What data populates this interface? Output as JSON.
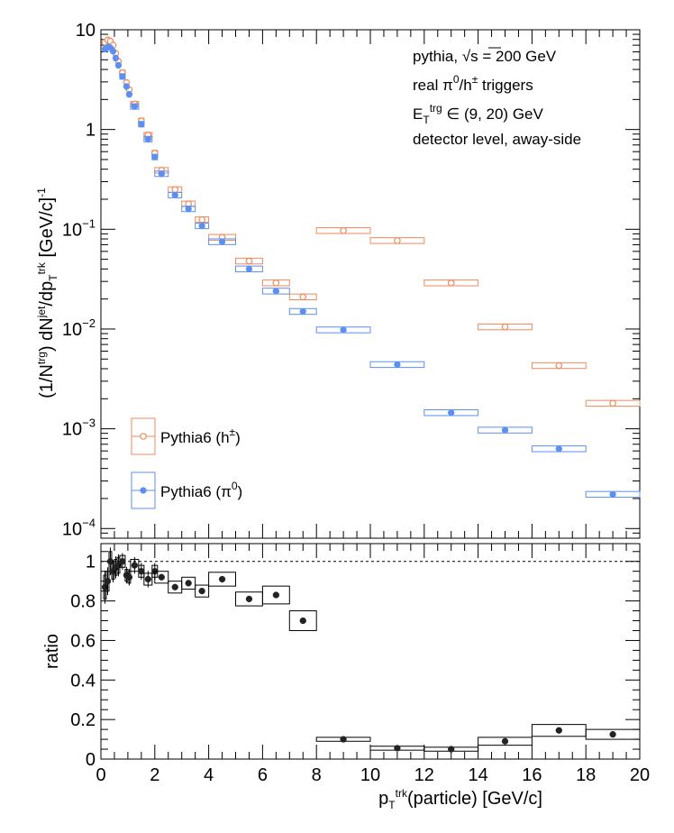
{
  "chart_data": [
    {
      "type": "scatter",
      "panel": "top",
      "x_range": [
        0,
        20
      ],
      "ylim": [
        8e-05,
        10
      ],
      "log_y": true,
      "grid": false,
      "y_ticks": [
        {
          "v": 10,
          "label": "10",
          "exp": ""
        },
        {
          "v": 1,
          "label": "1",
          "exp": ""
        },
        {
          "v": 0.1,
          "label": "10",
          "exp": "−1"
        },
        {
          "v": 0.01,
          "label": "10",
          "exp": "−2"
        },
        {
          "v": 0.001,
          "label": "10",
          "exp": "−3"
        },
        {
          "v": 0.0001,
          "label": "10",
          "exp": "−4"
        }
      ],
      "ylabel_parts": [
        {
          "t": "(1/N",
          "s": ""
        },
        {
          "t": "trg",
          "s": "sup"
        },
        {
          "t": ") dN",
          "s": ""
        },
        {
          "t": "jet",
          "s": "sup"
        },
        {
          "t": "/dp",
          "s": ""
        },
        {
          "t": "T",
          "s": "sub"
        },
        {
          "t": "trk",
          "s": "sup"
        },
        {
          "t": " [GeV/c]",
          "s": ""
        },
        {
          "t": "-1",
          "s": "sup"
        }
      ],
      "annotations": [
        {
          "text": "pythia, √s = 200 GeV"
        },
        {
          "text": "real π⁰/h± triggers"
        },
        {
          "text": "E_T^trg ∈ (9, 20) GeV"
        },
        {
          "text": "detector level, away-side"
        }
      ],
      "annotation_parts": [
        [
          {
            "t": "pythia, ",
            "s": ""
          },
          {
            "t": "√s",
            "s": ""
          },
          {
            "t": " = 200 GeV",
            "s": ""
          }
        ],
        [
          {
            "t": "real π",
            "s": ""
          },
          {
            "t": "0",
            "s": "sup"
          },
          {
            "t": "/h",
            "s": ""
          },
          {
            "t": "±",
            "s": "sup"
          },
          {
            "t": " triggers",
            "s": ""
          }
        ],
        [
          {
            "t": "E",
            "s": ""
          },
          {
            "t": "T",
            "s": "sub"
          },
          {
            "t": "trg",
            "s": "sup"
          },
          {
            "t": " ∈ (9, 20) GeV",
            "s": ""
          }
        ],
        [
          {
            "t": "detector level, away-side",
            "s": ""
          }
        ]
      ],
      "legend_placement": "bottom-left",
      "series": [
        {
          "name": "Pythia6 (h±)",
          "legend_parts": [
            {
              "t": "Pythia6 (h",
              "s": ""
            },
            {
              "t": "±",
              "s": "sup"
            },
            {
              "t": ")",
              "s": ""
            }
          ],
          "color": "#f0895a",
          "marker": "open-circle",
          "points": [
            {
              "x": 0.15,
              "y": 7.5,
              "lo": 0.1,
              "hi": 0.2
            },
            {
              "x": 0.25,
              "y": 7.9,
              "lo": 0.2,
              "hi": 0.3
            },
            {
              "x": 0.35,
              "y": 7.7,
              "lo": 0.3,
              "hi": 0.4
            },
            {
              "x": 0.45,
              "y": 7.0,
              "lo": 0.4,
              "hi": 0.5
            },
            {
              "x": 0.55,
              "y": 5.8,
              "lo": 0.5,
              "hi": 0.6
            },
            {
              "x": 0.65,
              "y": 4.8,
              "lo": 0.6,
              "hi": 0.7
            },
            {
              "x": 0.8,
              "y": 3.7,
              "lo": 0.7,
              "hi": 0.9
            },
            {
              "x": 0.95,
              "y": 2.95,
              "lo": 0.9,
              "hi": 1.0
            },
            {
              "x": 1.05,
              "y": 2.5,
              "lo": 1.0,
              "hi": 1.1
            },
            {
              "x": 1.25,
              "y": 1.8,
              "lo": 1.1,
              "hi": 1.4
            },
            {
              "x": 1.5,
              "y": 1.22,
              "lo": 1.4,
              "hi": 1.6
            },
            {
              "x": 1.75,
              "y": 0.88,
              "lo": 1.6,
              "hi": 1.9
            },
            {
              "x": 2.0,
              "y": 0.58,
              "lo": 1.9,
              "hi": 2.1
            },
            {
              "x": 2.25,
              "y": 0.39,
              "lo": 2.0,
              "hi": 2.5
            },
            {
              "x": 2.75,
              "y": 0.25,
              "lo": 2.5,
              "hi": 3.0
            },
            {
              "x": 3.25,
              "y": 0.18,
              "lo": 3.0,
              "hi": 3.5
            },
            {
              "x": 3.75,
              "y": 0.125,
              "lo": 3.5,
              "hi": 4.0
            },
            {
              "x": 4.5,
              "y": 0.083,
              "lo": 4.0,
              "hi": 5.0
            },
            {
              "x": 5.5,
              "y": 0.048,
              "lo": 5.0,
              "hi": 6.0
            },
            {
              "x": 6.5,
              "y": 0.029,
              "lo": 6.0,
              "hi": 7.0
            },
            {
              "x": 7.5,
              "y": 0.021,
              "lo": 7.0,
              "hi": 8.0
            },
            {
              "x": 9.0,
              "y": 0.097,
              "lo": 8.0,
              "hi": 10.0
            },
            {
              "x": 11.0,
              "y": 0.077,
              "lo": 10.0,
              "hi": 12.0
            },
            {
              "x": 13.0,
              "y": 0.029,
              "lo": 12.0,
              "hi": 14.0
            },
            {
              "x": 15.0,
              "y": 0.0105,
              "lo": 14.0,
              "hi": 16.0
            },
            {
              "x": 17.0,
              "y": 0.0043,
              "lo": 16.0,
              "hi": 18.0
            },
            {
              "x": 19.0,
              "y": 0.0018,
              "lo": 18.0,
              "hi": 20.0
            }
          ]
        },
        {
          "name": "Pythia6 (π0)",
          "legend_parts": [
            {
              "t": "Pythia6 (π",
              "s": ""
            },
            {
              "t": "0",
              "s": "sup"
            },
            {
              "t": ")",
              "s": ""
            }
          ],
          "color": "#5b8ff0",
          "marker": "filled-circle",
          "points": [
            {
              "x": 0.15,
              "y": 6.4,
              "lo": 0.1,
              "hi": 0.2
            },
            {
              "x": 0.25,
              "y": 6.7,
              "lo": 0.2,
              "hi": 0.3
            },
            {
              "x": 0.35,
              "y": 6.6,
              "lo": 0.3,
              "hi": 0.4
            },
            {
              "x": 0.45,
              "y": 6.1,
              "lo": 0.4,
              "hi": 0.5
            },
            {
              "x": 0.55,
              "y": 5.2,
              "lo": 0.5,
              "hi": 0.6
            },
            {
              "x": 0.65,
              "y": 4.4,
              "lo": 0.6,
              "hi": 0.7
            },
            {
              "x": 0.8,
              "y": 3.4,
              "lo": 0.7,
              "hi": 0.9
            },
            {
              "x": 0.95,
              "y": 2.7,
              "lo": 0.9,
              "hi": 1.0
            },
            {
              "x": 1.05,
              "y": 2.25,
              "lo": 1.0,
              "hi": 1.1
            },
            {
              "x": 1.25,
              "y": 1.7,
              "lo": 1.1,
              "hi": 1.4
            },
            {
              "x": 1.5,
              "y": 1.13,
              "lo": 1.4,
              "hi": 1.6
            },
            {
              "x": 1.75,
              "y": 0.8,
              "lo": 1.6,
              "hi": 1.9
            },
            {
              "x": 2.0,
              "y": 0.53,
              "lo": 1.9,
              "hi": 2.1
            },
            {
              "x": 2.25,
              "y": 0.36,
              "lo": 2.0,
              "hi": 2.5
            },
            {
              "x": 2.75,
              "y": 0.22,
              "lo": 2.5,
              "hi": 3.0
            },
            {
              "x": 3.25,
              "y": 0.16,
              "lo": 3.0,
              "hi": 3.5
            },
            {
              "x": 3.75,
              "y": 0.108,
              "lo": 3.5,
              "hi": 4.0
            },
            {
              "x": 4.5,
              "y": 0.075,
              "lo": 4.0,
              "hi": 5.0
            },
            {
              "x": 5.5,
              "y": 0.04,
              "lo": 5.0,
              "hi": 6.0
            },
            {
              "x": 6.5,
              "y": 0.024,
              "lo": 6.0,
              "hi": 7.0
            },
            {
              "x": 7.5,
              "y": 0.015,
              "lo": 7.0,
              "hi": 8.0
            },
            {
              "x": 9.0,
              "y": 0.0098,
              "lo": 8.0,
              "hi": 10.0
            },
            {
              "x": 11.0,
              "y": 0.0044,
              "lo": 10.0,
              "hi": 12.0
            },
            {
              "x": 13.0,
              "y": 0.00145,
              "lo": 12.0,
              "hi": 14.0
            },
            {
              "x": 15.0,
              "y": 0.00097,
              "lo": 14.0,
              "hi": 16.0
            },
            {
              "x": 17.0,
              "y": 0.00063,
              "lo": 16.0,
              "hi": 18.0
            },
            {
              "x": 19.0,
              "y": 0.00022,
              "lo": 18.0,
              "hi": 20.0
            }
          ]
        }
      ]
    },
    {
      "type": "scatter",
      "panel": "bottom",
      "ylabel": "ratio",
      "x_range": [
        0,
        20
      ],
      "ylim": [
        0,
        1.09
      ],
      "grid": false,
      "reference_line": 1.0,
      "x_ticks": [
        0,
        2,
        4,
        6,
        8,
        10,
        12,
        14,
        16,
        18,
        20
      ],
      "y_ticks": [
        0,
        0.2,
        0.4,
        0.6,
        0.8,
        1
      ],
      "xlabel_parts": [
        {
          "t": "p",
          "s": ""
        },
        {
          "t": "T",
          "s": "sub"
        },
        {
          "t": "trk",
          "s": "sup"
        },
        {
          "t": "(particle) [GeV/c]",
          "s": ""
        }
      ],
      "series": [
        {
          "color": "#222222",
          "marker": "filled-circle",
          "points": [
            {
              "x": 0.15,
              "y": 0.87,
              "lo": 0.1,
              "hi": 0.2,
              "err": 0.06
            },
            {
              "x": 0.25,
              "y": 0.9,
              "lo": 0.2,
              "hi": 0.3,
              "err": 0.05
            },
            {
              "x": 0.35,
              "y": 1.0,
              "lo": 0.3,
              "hi": 0.4,
              "err": 0.05
            },
            {
              "x": 0.45,
              "y": 0.95,
              "lo": 0.4,
              "hi": 0.5,
              "err": 0.04
            },
            {
              "x": 0.55,
              "y": 0.97,
              "lo": 0.5,
              "hi": 0.6,
              "err": 0.04
            },
            {
              "x": 0.65,
              "y": 0.98,
              "lo": 0.6,
              "hi": 0.7,
              "err": 0.04
            },
            {
              "x": 0.8,
              "y": 1.0,
              "lo": 0.7,
              "hi": 0.9,
              "err": 0.03
            },
            {
              "x": 0.95,
              "y": 0.93,
              "lo": 0.9,
              "hi": 1.0,
              "err": 0.03
            },
            {
              "x": 1.05,
              "y": 0.92,
              "lo": 1.0,
              "hi": 1.1,
              "err": 0.03
            },
            {
              "x": 1.25,
              "y": 0.98,
              "lo": 1.1,
              "hi": 1.4,
              "err": 0.03
            },
            {
              "x": 1.5,
              "y": 0.95,
              "lo": 1.4,
              "hi": 1.6,
              "err": 0.03
            },
            {
              "x": 1.75,
              "y": 0.91,
              "lo": 1.6,
              "hi": 1.9,
              "err": 0.03
            },
            {
              "x": 2.0,
              "y": 0.95,
              "lo": 1.9,
              "hi": 2.1,
              "err": 0.03
            },
            {
              "x": 2.25,
              "y": 0.92,
              "lo": 2.0,
              "hi": 2.5,
              "err": 0.03
            },
            {
              "x": 2.75,
              "y": 0.87,
              "lo": 2.5,
              "hi": 3.0,
              "err": 0.03
            },
            {
              "x": 3.25,
              "y": 0.89,
              "lo": 3.0,
              "hi": 3.5,
              "err": 0.03
            },
            {
              "x": 3.75,
              "y": 0.85,
              "lo": 3.5,
              "hi": 4.0,
              "err": 0.03
            },
            {
              "x": 4.5,
              "y": 0.91,
              "lo": 4.0,
              "hi": 5.0,
              "err": 0.035
            },
            {
              "x": 5.5,
              "y": 0.81,
              "lo": 5.0,
              "hi": 6.0,
              "err": 0.035
            },
            {
              "x": 6.5,
              "y": 0.83,
              "lo": 6.0,
              "hi": 7.0,
              "err": 0.045
            },
            {
              "x": 7.5,
              "y": 0.7,
              "lo": 7.0,
              "hi": 8.0,
              "err": 0.05
            },
            {
              "x": 9.0,
              "y": 0.1,
              "lo": 8.0,
              "hi": 10.0,
              "err": 0.01
            },
            {
              "x": 11.0,
              "y": 0.055,
              "lo": 10.0,
              "hi": 12.0,
              "err": 0.01
            },
            {
              "x": 13.0,
              "y": 0.05,
              "lo": 12.0,
              "hi": 14.0,
              "err": 0.01
            },
            {
              "x": 15.0,
              "y": 0.09,
              "lo": 14.0,
              "hi": 16.0,
              "err": 0.02
            },
            {
              "x": 17.0,
              "y": 0.145,
              "lo": 16.0,
              "hi": 18.0,
              "err": 0.03
            },
            {
              "x": 19.0,
              "y": 0.125,
              "lo": 18.0,
              "hi": 20.0,
              "err": 0.025
            }
          ]
        }
      ]
    }
  ]
}
